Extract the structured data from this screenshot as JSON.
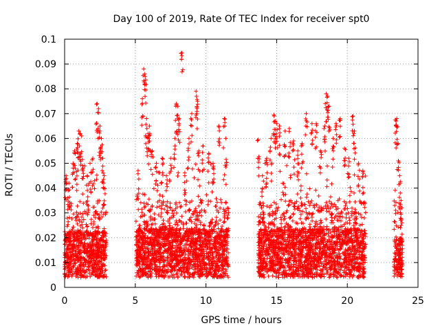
{
  "chart_data": {
    "type": "scatter",
    "title": "Day 100 of 2019, Rate Of TEC Index for receiver spt0",
    "xlabel": "GPS time / hours",
    "ylabel": "ROTI / TECUs",
    "xlim": [
      0,
      25
    ],
    "ylim": [
      0,
      0.1
    ],
    "x_ticks": [
      0,
      5,
      10,
      15,
      20,
      25
    ],
    "x_tick_labels": [
      "0",
      "5",
      "10",
      "15",
      "20",
      "25"
    ],
    "y_ticks": [
      0,
      0.01,
      0.02,
      0.03,
      0.04,
      0.05,
      0.06,
      0.07,
      0.08,
      0.09,
      0.1
    ],
    "y_tick_labels": [
      "0",
      "0.01",
      "0.02",
      "0.03",
      "0.04",
      "0.05",
      "0.06",
      "0.07",
      "0.08",
      "0.09",
      "0.1"
    ],
    "grid": true,
    "marker": "+",
    "marker_color": "#ff0000",
    "series": [
      {
        "name": "spt0",
        "segments": [
          {
            "start": 0.0,
            "end": 2.95,
            "base": 0.012,
            "spread": 0.012
          },
          {
            "start": 5.05,
            "end": 11.6,
            "base": 0.012,
            "spread": 0.013
          },
          {
            "start": 13.7,
            "end": 21.3,
            "base": 0.012,
            "spread": 0.013
          },
          {
            "start": 23.3,
            "end": 23.9,
            "base": 0.011,
            "spread": 0.01
          }
        ],
        "points": [
          [
            0.1,
            0.045
          ],
          [
            0.2,
            0.036
          ],
          [
            0.3,
            0.042
          ],
          [
            0.6,
            0.05
          ],
          [
            0.7,
            0.055
          ],
          [
            0.9,
            0.058
          ],
          [
            1.0,
            0.063
          ],
          [
            1.1,
            0.062
          ],
          [
            1.2,
            0.061
          ],
          [
            1.3,
            0.048
          ],
          [
            1.6,
            0.045
          ],
          [
            1.8,
            0.05
          ],
          [
            2.0,
            0.052
          ],
          [
            2.3,
            0.074
          ],
          [
            2.4,
            0.072
          ],
          [
            2.5,
            0.065
          ],
          [
            2.6,
            0.06
          ],
          [
            2.7,
            0.052
          ],
          [
            2.8,
            0.045
          ],
          [
            5.2,
            0.047
          ],
          [
            5.5,
            0.076
          ],
          [
            5.6,
            0.088
          ],
          [
            5.7,
            0.085
          ],
          [
            5.8,
            0.068
          ],
          [
            5.9,
            0.062
          ],
          [
            6.0,
            0.065
          ],
          [
            6.2,
            0.055
          ],
          [
            6.5,
            0.05
          ],
          [
            6.9,
            0.052
          ],
          [
            7.2,
            0.045
          ],
          [
            7.5,
            0.052
          ],
          [
            7.8,
            0.06
          ],
          [
            7.9,
            0.074
          ],
          [
            8.0,
            0.073
          ],
          [
            8.1,
            0.068
          ],
          [
            8.3,
            0.0945
          ],
          [
            8.5,
            0.045
          ],
          [
            8.8,
            0.06
          ],
          [
            9.0,
            0.07
          ],
          [
            9.3,
            0.079
          ],
          [
            9.4,
            0.075
          ],
          [
            9.5,
            0.055
          ],
          [
            9.8,
            0.057
          ],
          [
            10.2,
            0.054
          ],
          [
            10.5,
            0.05
          ],
          [
            10.9,
            0.065
          ],
          [
            11.3,
            0.068
          ],
          [
            11.4,
            0.06
          ],
          [
            13.7,
            0.0595
          ],
          [
            14.0,
            0.045
          ],
          [
            14.3,
            0.052
          ],
          [
            14.6,
            0.06
          ],
          [
            14.8,
            0.0695
          ],
          [
            14.9,
            0.067
          ],
          [
            15.0,
            0.066
          ],
          [
            15.2,
            0.065
          ],
          [
            15.6,
            0.063
          ],
          [
            15.9,
            0.064
          ],
          [
            16.2,
            0.059
          ],
          [
            16.5,
            0.055
          ],
          [
            16.8,
            0.058
          ],
          [
            17.1,
            0.07
          ],
          [
            17.5,
            0.066
          ],
          [
            17.8,
            0.066
          ],
          [
            18.1,
            0.055
          ],
          [
            18.4,
            0.065
          ],
          [
            18.5,
            0.078
          ],
          [
            18.6,
            0.077
          ],
          [
            18.7,
            0.073
          ],
          [
            19.0,
            0.06
          ],
          [
            19.2,
            0.066
          ],
          [
            19.5,
            0.068
          ],
          [
            19.8,
            0.056
          ],
          [
            20.1,
            0.052
          ],
          [
            20.4,
            0.069
          ],
          [
            20.5,
            0.063
          ],
          [
            20.8,
            0.05
          ],
          [
            21.1,
            0.047
          ],
          [
            23.4,
            0.0675
          ],
          [
            23.5,
            0.068
          ],
          [
            23.6,
            0.058
          ],
          [
            23.7,
            0.045
          ],
          [
            23.8,
            0.035
          ]
        ]
      }
    ]
  }
}
